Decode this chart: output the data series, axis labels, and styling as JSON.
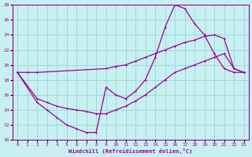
{
  "xlabel": "Windchill (Refroidissement éolien,°C)",
  "bg_color": "#c8f0f0",
  "grid_color": "#a0d8d8",
  "line_color": "#990099",
  "xlim": [
    -0.5,
    23.5
  ],
  "ylim": [
    10,
    28
  ],
  "xticks": [
    0,
    1,
    2,
    3,
    4,
    5,
    6,
    7,
    8,
    9,
    10,
    11,
    12,
    13,
    14,
    15,
    16,
    17,
    18,
    19,
    20,
    21,
    22,
    23
  ],
  "yticks": [
    10,
    12,
    14,
    16,
    18,
    20,
    22,
    24,
    26,
    28
  ],
  "curve1_x": [
    0,
    1,
    2,
    9,
    10,
    11,
    12,
    13,
    14,
    15,
    16,
    17,
    18,
    19,
    20,
    21,
    22,
    23
  ],
  "curve1_y": [
    19,
    19,
    19,
    19.5,
    19.8,
    20.0,
    20.5,
    21.0,
    21.5,
    22.0,
    22.5,
    23.0,
    23.3,
    23.8,
    24.0,
    23.5,
    19.5,
    19.0
  ],
  "curve2_x": [
    0,
    2,
    3,
    4,
    5,
    6,
    7,
    8,
    9,
    10,
    11,
    12,
    13,
    14,
    15,
    16,
    17,
    18,
    19,
    20,
    21,
    22,
    23
  ],
  "curve2_y": [
    19,
    15,
    14,
    13,
    12,
    11.5,
    11,
    11,
    17,
    16,
    15.5,
    16.5,
    18,
    21,
    25,
    28,
    27.5,
    25.5,
    24.0,
    21.5,
    19.5,
    19.0,
    19.0
  ],
  "curve3_x": [
    0,
    2,
    3,
    4,
    5,
    6,
    7,
    8,
    9,
    10,
    11,
    12,
    13,
    14,
    15,
    16,
    17,
    18,
    19,
    20,
    21,
    22,
    23
  ],
  "curve3_y": [
    19,
    15.5,
    15,
    14.5,
    14.2,
    14.0,
    13.8,
    13.5,
    13.5,
    14.0,
    14.5,
    15.2,
    16.0,
    17.0,
    18.0,
    19.0,
    19.5,
    20.0,
    20.5,
    21.0,
    21.5,
    19.5,
    19.0
  ]
}
